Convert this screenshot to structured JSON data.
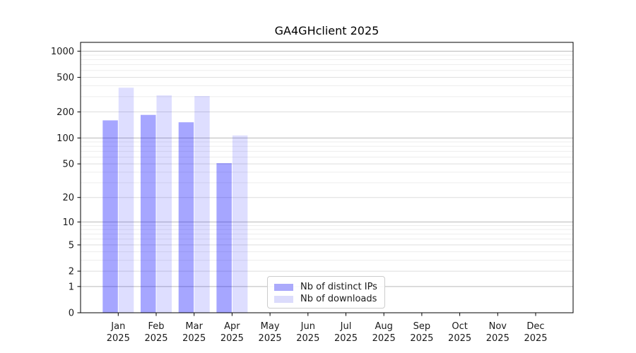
{
  "chart_data": {
    "type": "bar",
    "title": "GA4GHclient 2025",
    "categories": [
      "Jan",
      "Feb",
      "Mar",
      "Apr",
      "May",
      "Jun",
      "Jul",
      "Aug",
      "Sep",
      "Oct",
      "Nov",
      "Dec"
    ],
    "category_year": "2025",
    "series": [
      {
        "name": "Nb of distinct IPs",
        "color": "rgba(0,0,255,0.35)",
        "legend_color": "#abaafb",
        "values": [
          160,
          185,
          152,
          51,
          null,
          null,
          null,
          null,
          null,
          null,
          null,
          null
        ]
      },
      {
        "name": "Nb of downloads",
        "color": "rgba(0,0,255,0.13)",
        "legend_color": "#dcdcfc",
        "values": [
          380,
          310,
          305,
          107,
          null,
          null,
          null,
          null,
          null,
          null,
          null,
          null
        ]
      }
    ],
    "y_ticks": [
      0,
      1,
      2,
      5,
      10,
      20,
      50,
      100,
      200,
      500,
      1000
    ],
    "y_scale": "log10(value+1)",
    "y_axis_max": 1260,
    "grid": "both",
    "legend_position": "lower center",
    "axis_color": "#000000",
    "grid_major_color": "#bababa",
    "grid_sub_color": "#dddddd",
    "grid_minor_color": "#ededed"
  }
}
